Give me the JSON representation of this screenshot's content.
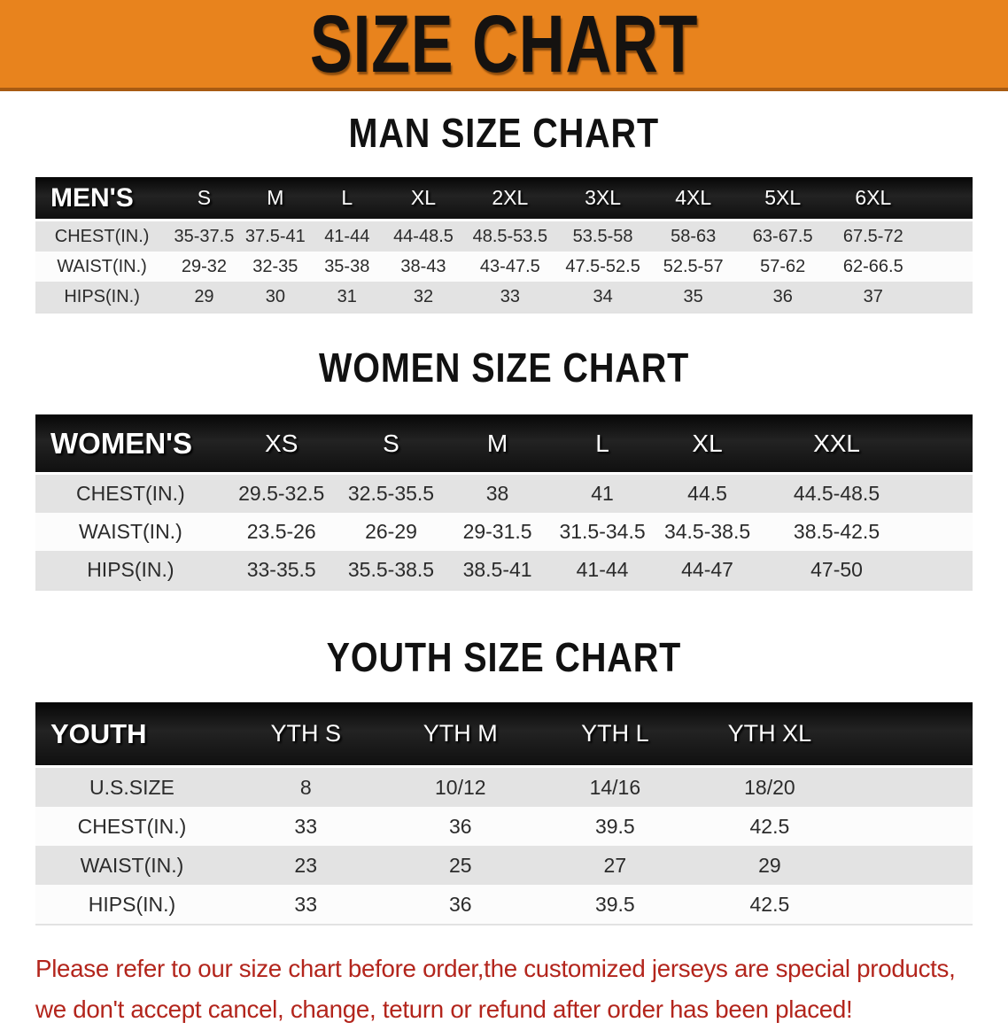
{
  "banner": {
    "title": "SIZE CHART"
  },
  "sections": [
    {
      "id": "men",
      "title": "MAN SIZE CHART",
      "header_label": "MEN'S",
      "columns": [
        "S",
        "M",
        "L",
        "XL",
        "2XL",
        "3XL",
        "4XL",
        "5XL",
        "6XL"
      ],
      "rows": [
        {
          "label": "CHEST(IN.)",
          "values": [
            "35-37.5",
            "37.5-41",
            "41-44",
            "44-48.5",
            "48.5-53.5",
            "53.5-58",
            "58-63",
            "63-67.5",
            "67.5-72"
          ]
        },
        {
          "label": "WAIST(IN.)",
          "values": [
            "29-32",
            "32-35",
            "35-38",
            "38-43",
            "43-47.5",
            "47.5-52.5",
            "52.5-57",
            "57-62",
            "62-66.5"
          ]
        },
        {
          "label": "HIPS(IN.)",
          "values": [
            "29",
            "30",
            "31",
            "32",
            "33",
            "34",
            "35",
            "36",
            "37"
          ]
        }
      ]
    },
    {
      "id": "women",
      "title": "WOMEN SIZE CHART",
      "header_label": "WOMEN'S",
      "columns": [
        "XS",
        "S",
        "M",
        "L",
        "XL",
        "XXL"
      ],
      "rows": [
        {
          "label": "CHEST(IN.)",
          "values": [
            "29.5-32.5",
            "32.5-35.5",
            "38",
            "41",
            "44.5",
            "44.5-48.5"
          ]
        },
        {
          "label": "WAIST(IN.)",
          "values": [
            "23.5-26",
            "26-29",
            "29-31.5",
            "31.5-34.5",
            "34.5-38.5",
            "38.5-42.5"
          ]
        },
        {
          "label": "HIPS(IN.)",
          "values": [
            "33-35.5",
            "35.5-38.5",
            "38.5-41",
            "41-44",
            "44-47",
            "47-50"
          ]
        }
      ]
    },
    {
      "id": "youth",
      "title": "YOUTH SIZE CHART",
      "header_label": "YOUTH",
      "columns": [
        "YTH S",
        "YTH M",
        "YTH L",
        "YTH XL"
      ],
      "rows": [
        {
          "label": "U.S.SIZE",
          "values": [
            "8",
            "10/12",
            "14/16",
            "18/20"
          ]
        },
        {
          "label": "CHEST(IN.)",
          "values": [
            "33",
            "36",
            "39.5",
            "42.5"
          ]
        },
        {
          "label": "WAIST(IN.)",
          "values": [
            "23",
            "25",
            "27",
            "29"
          ]
        },
        {
          "label": "HIPS(IN.)",
          "values": [
            "33",
            "36",
            "39.5",
            "42.5"
          ]
        }
      ]
    }
  ],
  "disclaimer": {
    "line1": "Please refer to our size chart before order,the customized jerseys are special products,",
    "line2": "we don't accept cancel, change, teturn or refund after order has been placed!"
  },
  "colors": {
    "banner_bg": "#E8831D",
    "banner_border": "#A85B12",
    "table_header_bg": "#161616",
    "row_gray": "#E3E3E3",
    "row_white": "#FCFCFC",
    "disclaimer_red": "#B3251C"
  }
}
